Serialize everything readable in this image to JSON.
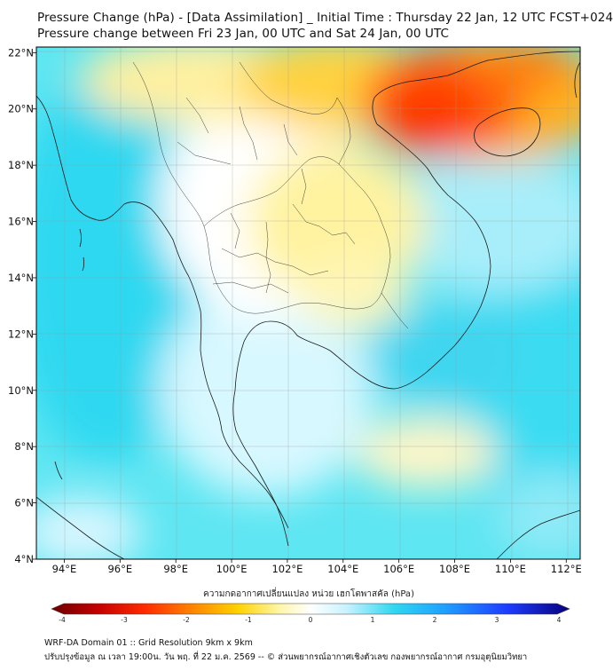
{
  "title": {
    "line1": "Pressure Change (hPa) - [Data Assimilation] _ Initial Time : Thursday 22 Jan, 12 UTC FCST+024",
    "line2": "Pressure change between Fri 23 Jan, 00 UTC and Sat 24 Jan, 00 UTC"
  },
  "axes": {
    "lon_labels": [
      "94°E",
      "96°E",
      "98°E",
      "100°E",
      "102°E",
      "104°E",
      "106°E",
      "108°E",
      "110°E",
      "112°E"
    ],
    "lat_labels": [
      "22°N",
      "20°N",
      "18°N",
      "16°N",
      "14°N",
      "12°N",
      "10°N",
      "8°N",
      "6°N",
      "4°N"
    ],
    "lon_range": [
      93,
      112.5
    ],
    "lat_range": [
      4,
      22.2
    ],
    "grid": true
  },
  "colorbar": {
    "label": "ความกดอากาศเปลี่ยนแปลง หน่วย เฮกโตพาสคัล (hPa)",
    "ticks": [
      "-4",
      "-3",
      "-2",
      "-1",
      "0",
      "1",
      "2",
      "3",
      "4"
    ],
    "range": [
      -4,
      4
    ],
    "colors": [
      "#6b0000",
      "#c40000",
      "#ff2a00",
      "#ff8c00",
      "#ffd200",
      "#fff6a8",
      "#ffffff",
      "#c8f2ff",
      "#30d8f0",
      "#1f9fff",
      "#1e3cff",
      "#07007a"
    ]
  },
  "footer": {
    "line1": "WRF-DA Domain 01 :: Grid Resolution 9km x 9km",
    "line2": "ปรับปรุงข้อมูล ณ เวลา 19:00น. วัน พฤ. ที่ 22 ม.ค. 2569 -- © ส่วนพยากรณ์อากาศเชิงตัวเลข กองพยากรณ์อากาศ กรมอุตุนิยมวิทยา"
  }
}
